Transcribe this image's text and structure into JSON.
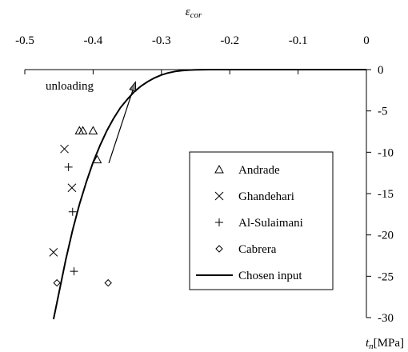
{
  "chart_data": {
    "type": "scatter",
    "title": "",
    "xlabel": "ε_cor",
    "xlabel_main": "ε",
    "xlabel_sub": "cor",
    "ylabel": "t_n [MPa]",
    "ylabel_main": "t",
    "ylabel_sub": "n",
    "ylabel_unit": "[MPa]",
    "xlim": [
      -0.5,
      0
    ],
    "ylim": [
      -30,
      0
    ],
    "x_ticks": [
      -0.5,
      -0.4,
      -0.3,
      -0.2,
      -0.1,
      0
    ],
    "x_tick_labels": [
      "-0.5",
      "-0.4",
      "-0.3",
      "-0.2",
      "-0.1",
      "0"
    ],
    "y_ticks": [
      0,
      -5,
      -10,
      -15,
      -20,
      -25,
      -30
    ],
    "y_tick_labels": [
      "0",
      "-5",
      "-10",
      "-15",
      "-20",
      "-25",
      "-30"
    ],
    "x_axis_position": "top",
    "y_axis_position": "right",
    "grid": false,
    "legend_position": "lower-right",
    "series": [
      {
        "name": "Andrade",
        "marker": "triangle",
        "points": [
          [
            -0.42,
            -7.4
          ],
          [
            -0.415,
            -7.4
          ],
          [
            -0.4,
            -7.4
          ],
          [
            -0.394,
            -10.9
          ]
        ]
      },
      {
        "name": "Ghandehari",
        "marker": "x",
        "points": [
          [
            -0.442,
            -9.6
          ],
          [
            -0.431,
            -14.3
          ],
          [
            -0.458,
            -22.1
          ]
        ]
      },
      {
        "name": "Al-Sulaimani",
        "marker": "plus",
        "points": [
          [
            -0.436,
            -11.8
          ],
          [
            -0.43,
            -17.2
          ],
          [
            -0.428,
            -24.4
          ]
        ]
      },
      {
        "name": "Cabrera",
        "marker": "diamond",
        "points": [
          [
            -0.453,
            -25.8
          ],
          [
            -0.378,
            -25.8
          ]
        ]
      },
      {
        "name": "Chosen input",
        "marker": "line",
        "points": [
          [
            -0.458,
            -30.2
          ],
          [
            -0.45,
            -27
          ],
          [
            -0.44,
            -23
          ],
          [
            -0.43,
            -19.4
          ],
          [
            -0.42,
            -16.3
          ],
          [
            -0.41,
            -13.6
          ],
          [
            -0.4,
            -11.2
          ],
          [
            -0.39,
            -9.2
          ],
          [
            -0.38,
            -7.4
          ],
          [
            -0.37,
            -5.9
          ],
          [
            -0.36,
            -4.6
          ],
          [
            -0.35,
            -3.6
          ],
          [
            -0.34,
            -2.7
          ],
          [
            -0.33,
            -2.0
          ],
          [
            -0.32,
            -1.45
          ],
          [
            -0.31,
            -1.0
          ],
          [
            -0.3,
            -0.65
          ],
          [
            -0.29,
            -0.4
          ],
          [
            -0.28,
            -0.22
          ],
          [
            -0.27,
            -0.12
          ],
          [
            -0.26,
            -0.06
          ],
          [
            -0.25,
            -0.02
          ],
          [
            -0.24,
            -0.005
          ],
          [
            -0.23,
            0
          ],
          [
            0,
            0
          ]
        ]
      }
    ],
    "annotations": [
      {
        "text": "unloading",
        "arrow_from": [
          -0.377,
          -11.3
        ],
        "arrow_to": [
          -0.338,
          -1.5
        ]
      }
    ]
  }
}
